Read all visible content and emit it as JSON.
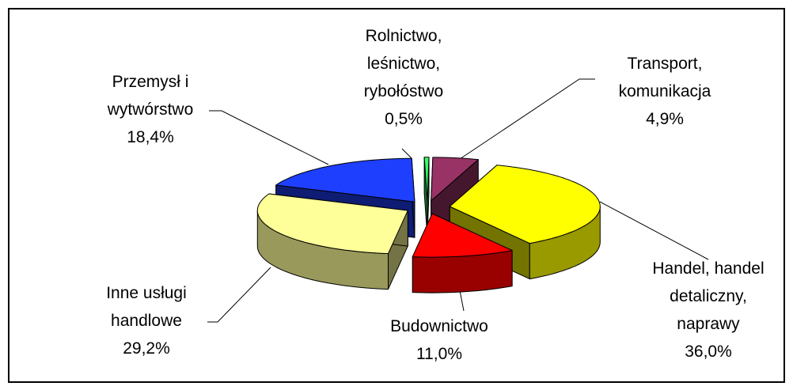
{
  "chart_data": {
    "type": "pie3d",
    "categories": [
      "Rolnictwo,\nleśnictwo,\nrybołóstwo",
      "Transport,\nkomunikacja",
      "Handel, handel\ndetaliczny,\nnaprawy",
      "Budownictwo",
      "Inne usługi\nhandlowe",
      "Przemysł i\nwytwórstwo"
    ],
    "values": [
      0.5,
      4.9,
      36.0,
      11.0,
      29.2,
      18.4
    ],
    "value_labels": [
      "0,5%",
      "4,9%",
      "36,0%",
      "11,0%",
      "29,2%",
      "18,4%"
    ],
    "colors": [
      "#33ff66",
      "#993366",
      "#ffff00",
      "#ff0000",
      "#ffff99",
      "#1f3fff"
    ]
  }
}
